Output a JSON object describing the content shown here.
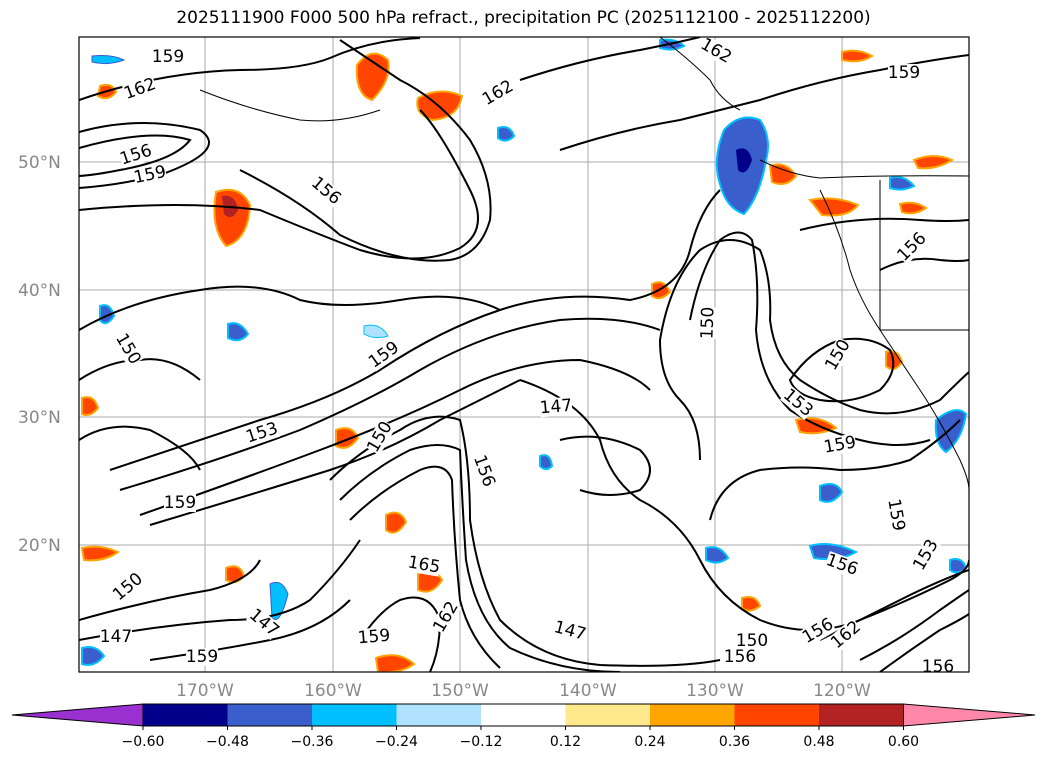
{
  "title": "2025111900 F000 500 hPa refract., precipitation PC (2025112100 - 2025112200)",
  "map": {
    "lat_labels": [
      "50°N",
      "40°N",
      "30°N",
      "20°N"
    ],
    "lon_labels": [
      "170°W",
      "160°W",
      "150°W",
      "140°W",
      "130°W",
      "120°W"
    ],
    "contour_labels": [
      "159",
      "162",
      "156",
      "159",
      "156",
      "150",
      "162",
      "162",
      "159",
      "156",
      "150",
      "147",
      "153",
      "150",
      "159",
      "156",
      "159",
      "153",
      "159",
      "156",
      "159",
      "150",
      "165",
      "147",
      "162",
      "159",
      "147",
      "150",
      "156",
      "162",
      "153",
      "147",
      "150",
      "156",
      "159",
      "156"
    ]
  },
  "colorbar": {
    "tick_labels": [
      "−0.60",
      "−0.48",
      "−0.36",
      "−0.24",
      "−0.12",
      "0.12",
      "0.24",
      "0.36",
      "0.48",
      "0.60"
    ],
    "colors": [
      "#9a30cf",
      "#00008b",
      "#3a5fcd",
      "#00bfff",
      "#b0e2ff",
      "#ffffff",
      "#ffe98c",
      "#ffa500",
      "#ff4500",
      "#b22222",
      "#ff88aa"
    ]
  }
}
